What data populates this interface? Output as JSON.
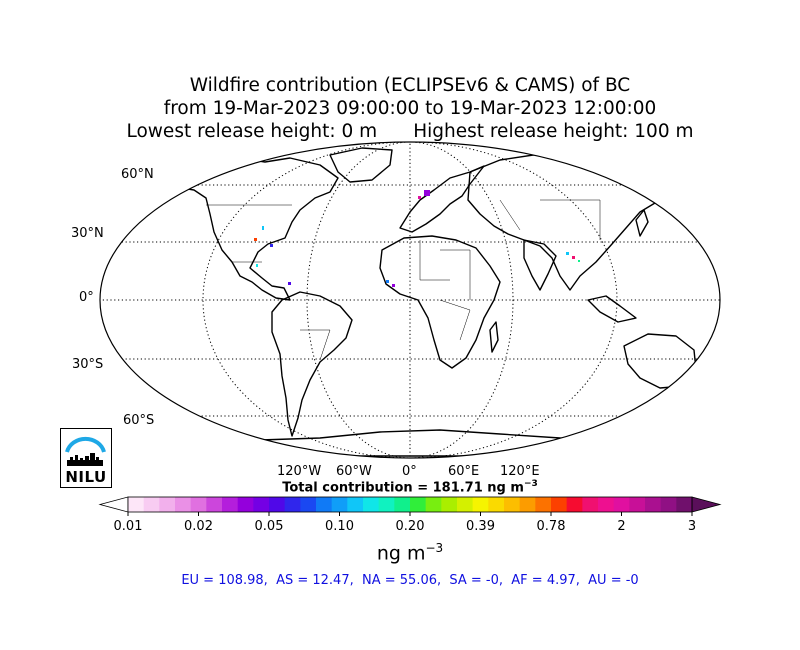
{
  "title": {
    "line1": "Wildfire contribution (ECLIPSEv6 & CAMS) of BC",
    "line2": "from 19-Mar-2023 09:00:00 to 19-Mar-2023 12:00:00",
    "lowest": "Lowest release height: 0 m",
    "highest": "Highest release height: 100 m"
  },
  "lat_labels": [
    "60°N",
    "30°N",
    "0°",
    "30°S",
    "60°S"
  ],
  "lon_labels": [
    "120°W",
    "60°W",
    "0°",
    "60°E",
    "120°E"
  ],
  "total": {
    "prefix": "Total contribution = 181.71 ng m",
    "exponent": "−3"
  },
  "colorbar": {
    "ticks": [
      "0.01",
      "0.02",
      "0.05",
      "0.10",
      "0.20",
      "0.39",
      "0.78",
      "2",
      "3"
    ],
    "colors": [
      "#fde6f8",
      "#f8ccf2",
      "#f2b0ec",
      "#ea90e6",
      "#e070e0",
      "#cc46dc",
      "#b41edc",
      "#9400dc",
      "#7400e4",
      "#5008e8",
      "#3026ec",
      "#1a48f2",
      "#107af6",
      "#109ef8",
      "#10c6f8",
      "#10e6e8",
      "#10f2c0",
      "#10f08c",
      "#30ee3a",
      "#78ee10",
      "#aaee00",
      "#d4f000",
      "#f6f400",
      "#fada00",
      "#fcbe00",
      "#fc9c00",
      "#fc7200",
      "#fc4000",
      "#f60c30",
      "#f01070",
      "#ee1090",
      "#e010a0",
      "#c81098",
      "#aa1090",
      "#901084",
      "#70106c"
    ],
    "under_color": "#ffffff",
    "over_color": "#5a0f5a"
  },
  "units": {
    "base": "ng m",
    "exponent": "−3"
  },
  "regions_text": "EU = 108.98,  AS = 12.47,  NA = 55.06,  SA = -0,  AF = 4.97,  AU = -0",
  "logo": {
    "text": "NILU",
    "arc_color": "#1ea8e6"
  }
}
